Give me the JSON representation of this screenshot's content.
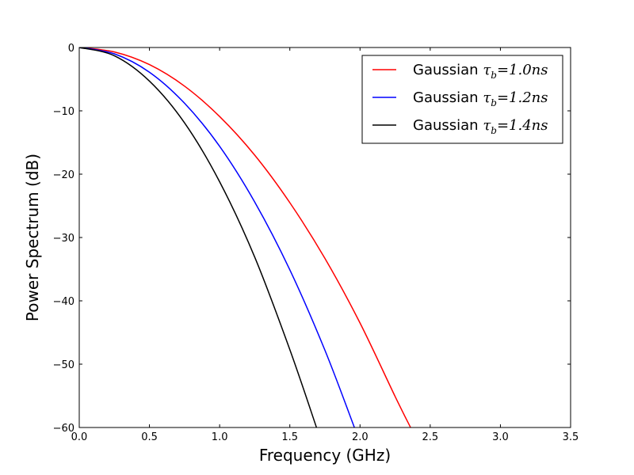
{
  "chart_data": {
    "type": "line",
    "title": "",
    "xlabel": "Frequency (GHz)",
    "ylabel": "Power Spectrum (dB)",
    "xlim": [
      0.0,
      3.5
    ],
    "ylim": [
      -60,
      0
    ],
    "x_ticks": [
      0.0,
      0.5,
      1.0,
      1.5,
      2.0,
      2.5,
      3.0,
      3.5
    ],
    "x_tick_labels": [
      "0.0",
      "0.5",
      "1.0",
      "1.5",
      "2.0",
      "2.5",
      "3.0",
      "3.5"
    ],
    "y_ticks": [
      0,
      -10,
      -20,
      -30,
      -40,
      -50,
      -60
    ],
    "y_tick_labels": [
      "0",
      "−10",
      "−20",
      "−30",
      "−40",
      "−50",
      "−60"
    ],
    "grid": false,
    "legend_position": "top-right",
    "series": [
      {
        "name": "Gaussian τ_b=1.0ns",
        "legend_prefix": "Gaussian",
        "legend_math": "τ",
        "legend_sub": "b",
        "legend_eq": "=1.0ns",
        "color": "#ff0000",
        "x": [
          0.0,
          0.25,
          0.5,
          0.75,
          1.0,
          1.25,
          1.5,
          1.75,
          2.0,
          2.25,
          2.36
        ],
        "values": [
          0,
          -0.7,
          -2.7,
          -6.1,
          -10.9,
          -17.0,
          -24.5,
          -33.3,
          -43.5,
          -55.1,
          -60
        ]
      },
      {
        "name": "Gaussian τ_b=1.2ns",
        "legend_prefix": "Gaussian",
        "legend_math": "τ",
        "legend_sub": "b",
        "legend_eq": "=1.2ns",
        "color": "#0000ff",
        "x": [
          0.0,
          0.25,
          0.5,
          0.75,
          1.0,
          1.25,
          1.5,
          1.75,
          1.96
        ],
        "values": [
          0,
          -1.0,
          -3.9,
          -8.8,
          -15.6,
          -24.4,
          -35.1,
          -47.8,
          -60
        ]
      },
      {
        "name": "Gaussian τ_b=1.4ns",
        "legend_prefix": "Gaussian",
        "legend_math": "τ",
        "legend_sub": "b",
        "legend_eq": "=1.4ns",
        "color": "#000000",
        "x": [
          0.0,
          0.25,
          0.5,
          0.75,
          1.0,
          1.25,
          1.5,
          1.69
        ],
        "values": [
          0,
          -1.3,
          -5.3,
          -11.9,
          -21.2,
          -33.1,
          -47.7,
          -60
        ]
      }
    ]
  }
}
